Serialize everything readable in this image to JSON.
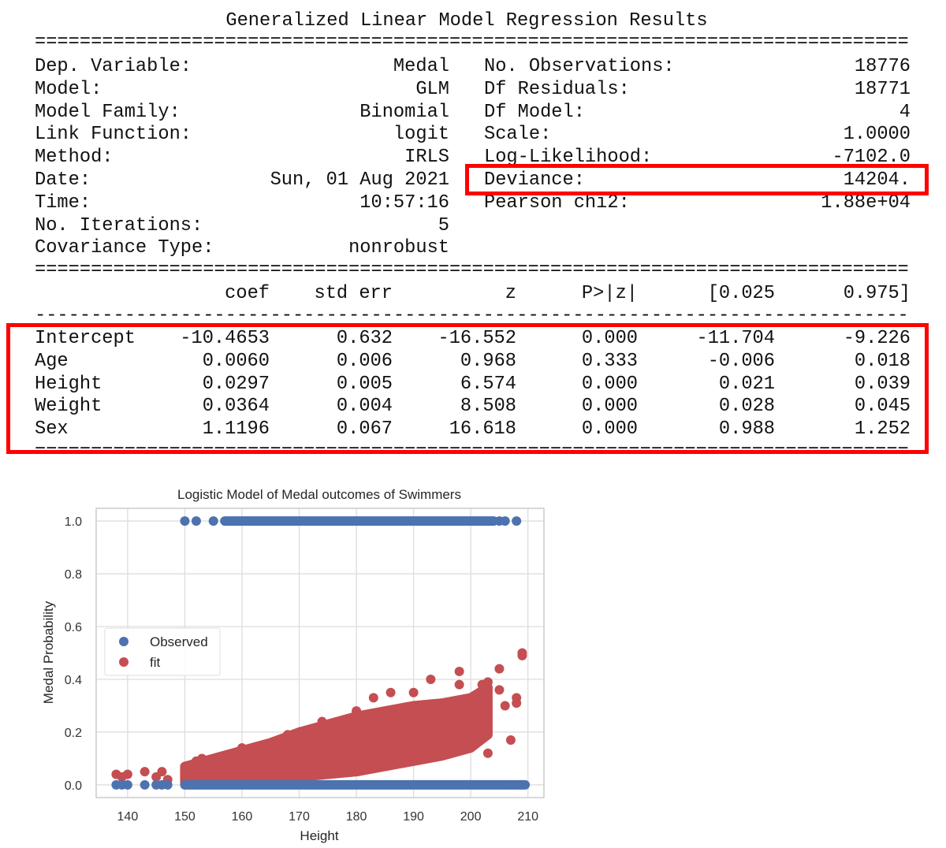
{
  "summary": {
    "title": "Generalized Linear Model Regression Results",
    "separator_double": "==============================================================================",
    "separator_single": "------------------------------------------------------------------------------",
    "left": [
      {
        "label": "Dep. Variable:",
        "value": "Medal"
      },
      {
        "label": "Model:",
        "value": "GLM"
      },
      {
        "label": "Model Family:",
        "value": "Binomial"
      },
      {
        "label": "Link Function:",
        "value": "logit"
      },
      {
        "label": "Method:",
        "value": "IRLS"
      },
      {
        "label": "Date:",
        "value": "Sun, 01 Aug 2021"
      },
      {
        "label": "Time:",
        "value": "10:57:16"
      },
      {
        "label": "No. Iterations:",
        "value": "5"
      },
      {
        "label": "Covariance Type:",
        "value": "nonrobust"
      }
    ],
    "right": [
      {
        "label": "No. Observations:",
        "value": "18776"
      },
      {
        "label": "Df Residuals:",
        "value": "18771"
      },
      {
        "label": "Df Model:",
        "value": "4"
      },
      {
        "label": "Scale:",
        "value": "1.0000"
      },
      {
        "label": "Log-Likelihood:",
        "value": "-7102.0"
      },
      {
        "label": "Deviance:",
        "value": "14204."
      },
      {
        "label": "Pearson chi2:",
        "value": "1.88e+04"
      }
    ]
  },
  "coef_table": {
    "headers": [
      "coef",
      "std err",
      "z",
      "P>|z|",
      "[0.025",
      "0.975]"
    ],
    "rows": [
      {
        "name": "Intercept",
        "values": [
          "-10.4653",
          "0.632",
          "-16.552",
          "0.000",
          "-11.704",
          "-9.226"
        ]
      },
      {
        "name": "Age",
        "values": [
          "0.0060",
          "0.006",
          "0.968",
          "0.333",
          "-0.006",
          "0.018"
        ]
      },
      {
        "name": "Height",
        "values": [
          "0.0297",
          "0.005",
          "6.574",
          "0.000",
          "0.021",
          "0.039"
        ]
      },
      {
        "name": "Weight",
        "values": [
          "0.0364",
          "0.004",
          "8.508",
          "0.000",
          "0.028",
          "0.045"
        ]
      },
      {
        "name": "Sex",
        "values": [
          "1.1196",
          "0.067",
          "16.618",
          "0.000",
          "0.988",
          "1.252"
        ]
      }
    ]
  },
  "highlight_color": "#ff0000",
  "chart_data": {
    "type": "scatter",
    "title": "Logistic Model of Medal outcomes of Swimmers",
    "xlabel": "Height",
    "ylabel": "Medal Probability",
    "xlim": [
      134.5,
      212.8
    ],
    "ylim": [
      -0.048,
      1.048
    ],
    "xticks": [
      140,
      150,
      160,
      170,
      180,
      190,
      200,
      210
    ],
    "yticks": [
      0.0,
      0.2,
      0.4,
      0.6,
      0.8,
      1.0
    ],
    "ytick_labels": [
      "0.0",
      "0.2",
      "0.4",
      "0.6",
      "0.8",
      "1.0"
    ],
    "grid": true,
    "legend_position": "center-left",
    "series": [
      {
        "name": "Observed",
        "color": "#4c72b0",
        "points": [
          [
            150,
            1
          ],
          [
            152,
            1
          ],
          [
            155,
            1
          ],
          [
            208,
            1
          ],
          [
            206,
            1
          ],
          [
            205,
            1
          ],
          [
            138,
            0
          ],
          [
            139,
            0
          ],
          [
            140,
            0
          ],
          [
            143,
            0
          ],
          [
            145,
            0
          ],
          [
            146,
            0
          ],
          [
            147,
            0
          ]
        ],
        "dense_runs": [
          {
            "y": 1,
            "x_from": 157,
            "x_to": 204
          },
          {
            "y": 0,
            "x_from": 150,
            "x_to": 209.5
          }
        ]
      },
      {
        "name": "fit",
        "color": "#c44e52",
        "band": {
          "x": [
            150,
            155,
            160,
            165,
            170,
            175,
            180,
            185,
            190,
            195,
            200,
            203
          ],
          "lower": [
            0.01,
            0.01,
            0.01,
            0.02,
            0.03,
            0.04,
            0.05,
            0.07,
            0.09,
            0.11,
            0.14,
            0.19
          ],
          "upper": [
            0.07,
            0.1,
            0.13,
            0.16,
            0.2,
            0.23,
            0.26,
            0.28,
            0.3,
            0.31,
            0.33,
            0.37
          ]
        },
        "points": [
          [
            138,
            0.04
          ],
          [
            139,
            0.03
          ],
          [
            140,
            0.04
          ],
          [
            143,
            0.05
          ],
          [
            145,
            0.03
          ],
          [
            146,
            0.05
          ],
          [
            147,
            0.02
          ],
          [
            150,
            0.06
          ],
          [
            152,
            0.09
          ],
          [
            153,
            0.1
          ],
          [
            155,
            0.08
          ],
          [
            158,
            0.11
          ],
          [
            160,
            0.14
          ],
          [
            168,
            0.19
          ],
          [
            174,
            0.24
          ],
          [
            180,
            0.28
          ],
          [
            183,
            0.33
          ],
          [
            186,
            0.35
          ],
          [
            190,
            0.35
          ],
          [
            193,
            0.4
          ],
          [
            198,
            0.43
          ],
          [
            198,
            0.38
          ],
          [
            202,
            0.38
          ],
          [
            203,
            0.39
          ],
          [
            205,
            0.44
          ],
          [
            205,
            0.36
          ],
          [
            206,
            0.3
          ],
          [
            207,
            0.17
          ],
          [
            208,
            0.33
          ],
          [
            208,
            0.31
          ],
          [
            209,
            0.5
          ],
          [
            209,
            0.49
          ],
          [
            203,
            0.12
          ],
          [
            198,
            0.13
          ],
          [
            200,
            0.16
          ],
          [
            185,
            0.07
          ],
          [
            177,
            0.06
          ]
        ]
      }
    ]
  }
}
